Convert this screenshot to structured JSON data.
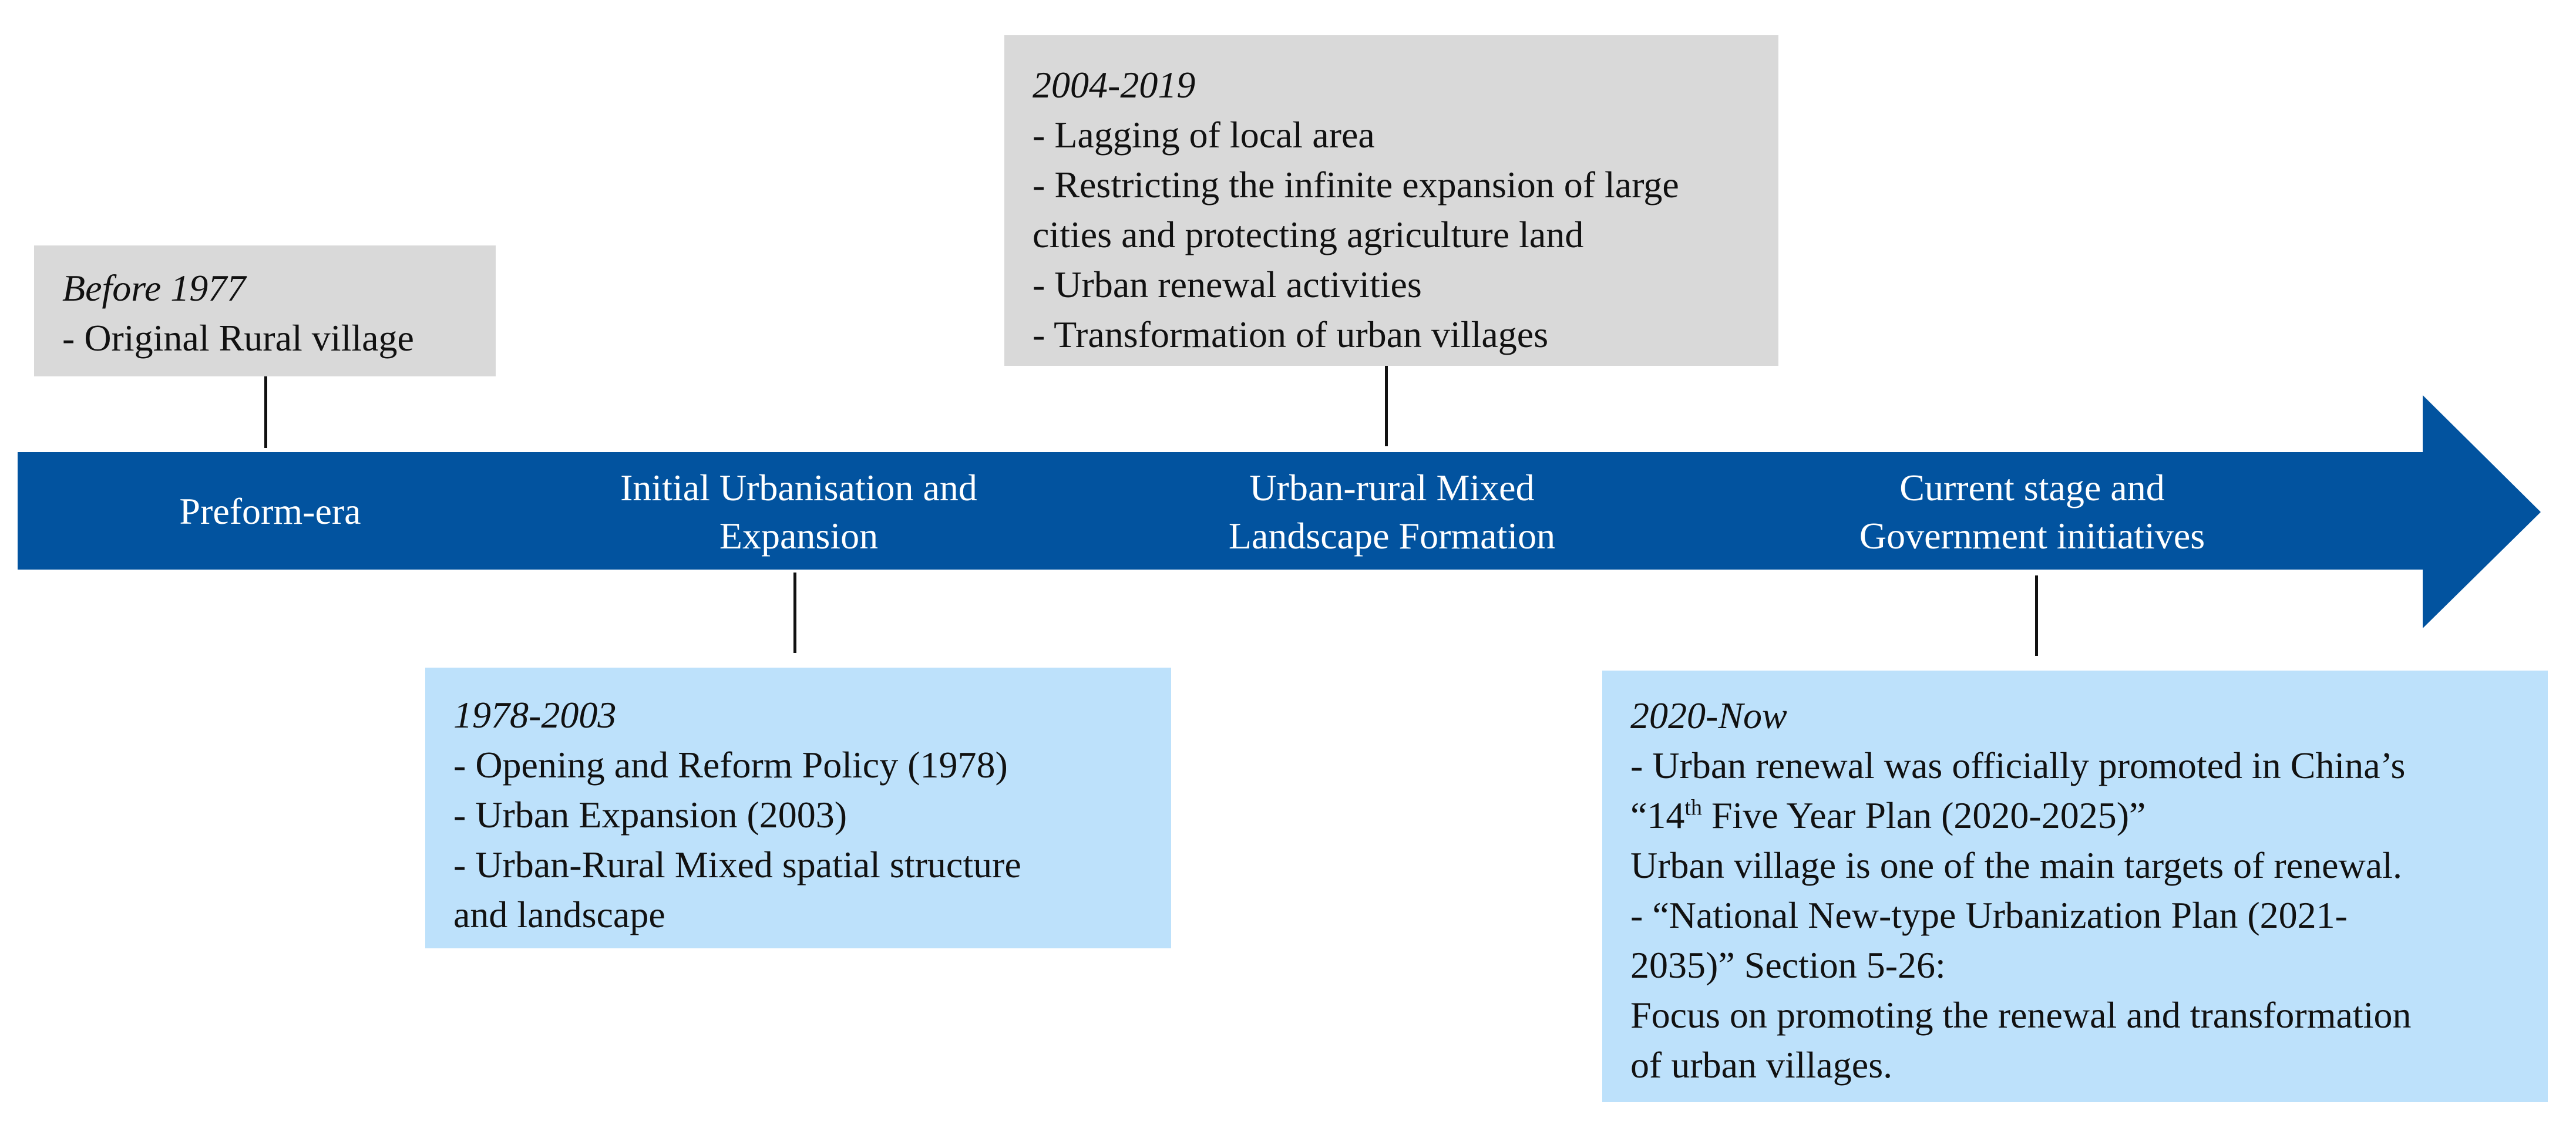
{
  "colors": {
    "arrow": "#02539f",
    "gray_box": "#d9d9d9",
    "blue_box": "#bde1fb",
    "connector": "#111111"
  },
  "stages": {
    "preform": "Preform-era",
    "initial_1": "Initial Urbanisation and",
    "initial_2": "Expansion",
    "mixed_1": "Urban-rural Mixed",
    "mixed_2": "Landscape Formation",
    "current_1": "Current stage and",
    "current_2": "Government initiatives"
  },
  "boxes": {
    "before1977": {
      "period": "Before 1977",
      "lines": [
        "- Original Rural village"
      ]
    },
    "y1978_2003": {
      "period": "1978-2003",
      "lines": [
        "- Opening and Reform Policy (1978)",
        "- Urban Expansion (2003)",
        "- Urban-Rural Mixed spatial structure",
        "and landscape"
      ]
    },
    "y2004_2019": {
      "period": "2004-2019",
      "lines": [
        "- Lagging of local area",
        "- Restricting the infinite expansion of large",
        "cities and protecting agriculture land",
        "- Urban renewal activities",
        "- Transformation of urban villages"
      ]
    },
    "y2020_now": {
      "period": "2020-Now",
      "line1": "- Urban renewal was officially promoted in China’s",
      "line2_pre": "“14",
      "line2_sup": "th",
      "line2_post": " Five Year Plan (2020-2025)”",
      "lines_rest": [
        "Urban village is one of the main targets of renewal.",
        "- “National New-type Urbanization Plan (2021-",
        "2035)” Section 5-26:",
        "Focus on promoting the renewal and transformation",
        "of urban villages."
      ]
    }
  }
}
